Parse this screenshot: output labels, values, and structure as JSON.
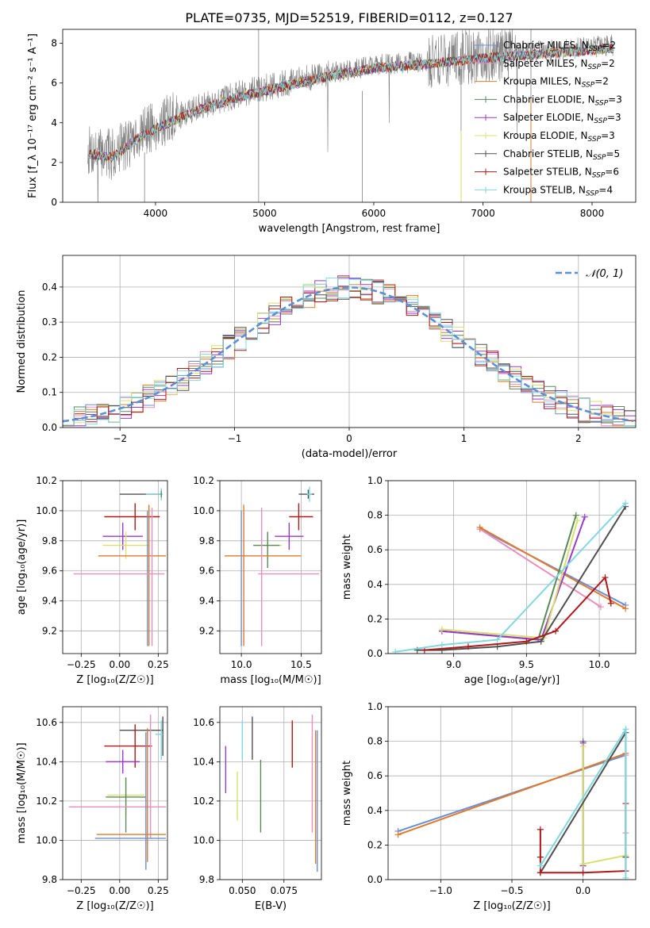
{
  "figure": {
    "title": "PLATE=0735, MJD=52519, FIBERID=0112, z=0.127"
  },
  "colors": {
    "Chabrier MILES": "#6a8fd8",
    "Salpeter MILES": "#e88fc0",
    "Kroupa MILES": "#e07a2a",
    "Chabrier ELODIE": "#5a8a5a",
    "Salpeter ELODIE": "#9a3acc",
    "Kroupa ELODIE": "#d8e070",
    "Chabrier STELIB": "#505050",
    "Salpeter STELIB": "#b01818",
    "Kroupa STELIB": "#80d8e0",
    "data": "#808080",
    "gaussian": "#5b8fd6",
    "grid": "#b0b0b0"
  },
  "chart_data": [
    {
      "type": "line",
      "panel": "spectrum",
      "xlabel": "wavelength [Angstrom, rest frame]",
      "ylabel": "Flux [f_λ 10⁻¹⁷ erg cm⁻² s⁻¹ A⁻¹]",
      "xlim": [
        3150,
        8400
      ],
      "ylim": [
        0,
        8.7
      ],
      "xticks": [
        "4000",
        "5000",
        "6000",
        "7000",
        "8000"
      ],
      "yticks": [
        "0",
        "2",
        "4",
        "6",
        "8"
      ],
      "legend": [
        {
          "label": "Chabrier MILES, N",
          "sub": "SSP",
          "tail": "=2",
          "color": "Chabrier MILES"
        },
        {
          "label": "Salpeter MILES, N",
          "sub": "SSP",
          "tail": "=2",
          "color": "Salpeter MILES"
        },
        {
          "label": "Kroupa MILES, N",
          "sub": "SSP",
          "tail": "=2",
          "color": "Kroupa MILES"
        },
        {
          "label": "Chabrier ELODIE, N",
          "sub": "SSP",
          "tail": "=3",
          "color": "Chabrier ELODIE"
        },
        {
          "label": "Salpeter ELODIE, N",
          "sub": "SSP",
          "tail": "=3",
          "color": "Salpeter ELODIE"
        },
        {
          "label": "Kroupa ELODIE, N",
          "sub": "SSP",
          "tail": "=3",
          "color": "Kroupa ELODIE"
        },
        {
          "label": "Chabrier STELIB, N",
          "sub": "SSP",
          "tail": "=5",
          "color": "Chabrier STELIB"
        },
        {
          "label": "Salpeter STELIB, N",
          "sub": "SSP",
          "tail": "=6",
          "color": "Salpeter STELIB"
        },
        {
          "label": "Kroupa STELIB, N",
          "sub": "SSP",
          "tail": "=4",
          "color": "Kroupa STELIB"
        }
      ],
      "legend_position": "upper-right",
      "continuum_knots": [
        [
          3380,
          2.6
        ],
        [
          3600,
          2.4
        ],
        [
          3900,
          3.6
        ],
        [
          4100,
          4.1
        ],
        [
          4400,
          4.8
        ],
        [
          4800,
          5.5
        ],
        [
          5200,
          6.0
        ],
        [
          5600,
          6.5
        ],
        [
          6000,
          6.9
        ],
        [
          6500,
          7.1
        ],
        [
          7000,
          7.4
        ],
        [
          7500,
          7.6
        ],
        [
          8000,
          7.8
        ],
        [
          8200,
          7.9
        ]
      ],
      "data_range": [
        3380,
        8200
      ],
      "grid": false
    },
    {
      "type": "line",
      "panel": "residuals",
      "xlabel": "(data-model)/error",
      "ylabel": "Normed distribution",
      "xlim": [
        -2.5,
        2.5
      ],
      "ylim": [
        0,
        0.49
      ],
      "xticks": [
        "−2",
        "−1",
        "0",
        "1",
        "2"
      ],
      "yticks": [
        "0.0",
        "0.1",
        "0.2",
        "0.3",
        "0.4"
      ],
      "bin_width": 0.1,
      "legend": [
        {
          "label": "𝒩(0, 1)",
          "style": "dashed"
        }
      ],
      "legend_position": "upper-right",
      "grid": true
    },
    {
      "type": "scatter",
      "panel": "age-vs-Z",
      "xlabel": "Z [log₁₀(Z/Z☉)]",
      "ylabel": "age  [log₁₀(age/yr)]",
      "xlim": [
        -0.37,
        0.31
      ],
      "ylim": [
        9.05,
        10.2
      ],
      "xticks": [
        "−0.25",
        "0.00",
        "0.25"
      ],
      "yticks": [
        "9.2",
        "9.4",
        "9.6",
        "9.8",
        "10.0",
        "10.2"
      ],
      "grid": true,
      "errorbars": [
        {
          "model": "Chabrier STELIB",
          "x": 0.27,
          "y": 10.11,
          "xerr": [
            0.27,
            0.0
          ],
          "yerr": [
            0.03,
            0.03
          ]
        },
        {
          "model": "Kroupa STELIB",
          "x": 0.27,
          "y": 10.11,
          "xerr": [
            0.1,
            0.01
          ],
          "yerr": [
            0.04,
            0.04
          ]
        },
        {
          "model": "Chabrier ELODIE",
          "x": 0.27,
          "y": 10.11,
          "xerr": [
            0.0,
            0.0
          ],
          "yerr": [
            0.02,
            0.02
          ]
        },
        {
          "model": "Salpeter STELIB",
          "x": 0.1,
          "y": 9.96,
          "xerr": [
            0.2,
            0.16
          ],
          "yerr": [
            0.09,
            0.09
          ]
        },
        {
          "model": "Salpeter ELODIE",
          "x": 0.02,
          "y": 9.83,
          "xerr": [
            0.13,
            0.13
          ],
          "yerr": [
            0.09,
            0.09
          ]
        },
        {
          "model": "Kroupa ELODIE",
          "x": 0.04,
          "y": 9.77,
          "xerr": [
            0.15,
            0.15
          ],
          "yerr": [
            0.09,
            0.09
          ]
        },
        {
          "model": "Kroupa MILES",
          "x": 0.19,
          "y": 9.7,
          "xerr": [
            0.33,
            0.11
          ],
          "yerr": [
            0.6,
            0.34
          ]
        },
        {
          "model": "Chabrier MILES",
          "x": 0.18,
          "y": 9.7,
          "xerr": [
            0.0,
            0.0
          ],
          "yerr": [
            0.6,
            0.3
          ]
        },
        {
          "model": "Salpeter MILES",
          "x": 0.21,
          "y": 9.58,
          "xerr": [
            0.51,
            0.08
          ],
          "yerr": [
            0.48,
            0.44
          ]
        }
      ]
    },
    {
      "type": "scatter",
      "panel": "age-vs-mass",
      "xlabel": "mass [log₁₀(M/M☉)]",
      "ylabel": "",
      "xlim": [
        9.82,
        10.67
      ],
      "ylim": [
        9.05,
        10.2
      ],
      "xticks": [
        "10.0",
        "10.5"
      ],
      "yticks": [
        "9.2",
        "9.4",
        "9.6",
        "9.8",
        "10.0",
        "10.2"
      ],
      "grid": true,
      "errorbars": [
        {
          "model": "Chabrier STELIB",
          "x": 10.56,
          "y": 10.11,
          "xerr": [
            0.08,
            0.05
          ],
          "yerr": [
            0.03,
            0.03
          ]
        },
        {
          "model": "Kroupa STELIB",
          "x": 10.57,
          "y": 10.11,
          "xerr": [
            0.02,
            0.02
          ],
          "yerr": [
            0.05,
            0.05
          ]
        },
        {
          "model": "Salpeter STELIB",
          "x": 10.48,
          "y": 9.96,
          "xerr": [
            0.08,
            0.12
          ],
          "yerr": [
            0.09,
            0.09
          ]
        },
        {
          "model": "Salpeter ELODIE",
          "x": 10.4,
          "y": 9.83,
          "xerr": [
            0.12,
            0.12
          ],
          "yerr": [
            0.09,
            0.09
          ]
        },
        {
          "model": "Kroupa ELODIE",
          "x": 10.22,
          "y": 9.77,
          "xerr": [
            0.12,
            0.12
          ],
          "yerr": [
            0.09,
            0.09
          ]
        },
        {
          "model": "Chabrier ELODIE",
          "x": 10.22,
          "y": 9.77,
          "xerr": [
            0.12,
            0.1
          ],
          "yerr": [
            0.15,
            0.09
          ]
        },
        {
          "model": "Kroupa MILES",
          "x": 10.02,
          "y": 9.7,
          "xerr": [
            0.16,
            0.48
          ],
          "yerr": [
            0.6,
            0.34
          ]
        },
        {
          "model": "Chabrier MILES",
          "x": 10.0,
          "y": 9.7,
          "xerr": [
            0.0,
            0.0
          ],
          "yerr": [
            0.6,
            0.3
          ]
        },
        {
          "model": "Salpeter MILES",
          "x": 10.17,
          "y": 9.58,
          "xerr": [
            0.03,
            0.48
          ],
          "yerr": [
            0.48,
            0.44
          ]
        }
      ]
    },
    {
      "type": "line",
      "panel": "weight-vs-age",
      "xlabel": "age  [log₁₀(age/yr)]",
      "ylabel": "mass weight",
      "xlim": [
        8.55,
        10.25
      ],
      "ylim": [
        0,
        1.0
      ],
      "xticks": [
        "9.0",
        "9.5",
        "10.0"
      ],
      "yticks": [
        "0.0",
        "0.2",
        "0.4",
        "0.6",
        "0.8",
        "1.0"
      ],
      "grid": true,
      "series": [
        {
          "model": "Chabrier MILES",
          "x": [
            9.18,
            10.18
          ],
          "y": [
            0.72,
            0.28
          ]
        },
        {
          "model": "Salpeter MILES",
          "x": [
            9.18,
            10.01
          ],
          "y": [
            0.72,
            0.27
          ]
        },
        {
          "model": "Kroupa MILES",
          "x": [
            9.18,
            10.18
          ],
          "y": [
            0.73,
            0.26
          ]
        },
        {
          "model": "Chabrier ELODIE",
          "x": [
            8.92,
            9.58,
            9.84
          ],
          "y": [
            0.13,
            0.08,
            0.8
          ]
        },
        {
          "model": "Salpeter ELODIE",
          "x": [
            8.92,
            9.6,
            9.9
          ],
          "y": [
            0.13,
            0.08,
            0.79
          ]
        },
        {
          "model": "Kroupa ELODIE",
          "x": [
            8.92,
            9.62,
            9.85
          ],
          "y": [
            0.14,
            0.09,
            0.77
          ]
        },
        {
          "model": "Chabrier STELIB",
          "x": [
            8.75,
            8.92,
            9.3,
            9.6,
            10.18
          ],
          "y": [
            0.02,
            0.02,
            0.04,
            0.07,
            0.85
          ]
        },
        {
          "model": "Salpeter STELIB",
          "x": [
            8.8,
            9.1,
            9.5,
            9.7,
            10.04,
            10.08
          ],
          "y": [
            0.02,
            0.04,
            0.07,
            0.13,
            0.44,
            0.29
          ]
        },
        {
          "model": "Kroupa STELIB",
          "x": [
            8.6,
            8.92,
            9.3,
            10.18
          ],
          "y": [
            0.01,
            0.05,
            0.08,
            0.87
          ]
        }
      ]
    },
    {
      "type": "scatter",
      "panel": "mass-vs-Z",
      "xlabel": "Z [log₁₀(Z/Z☉)]",
      "ylabel": "mass [log₁₀(M/M☉)]",
      "xlim": [
        -0.37,
        0.31
      ],
      "ylim": [
        9.8,
        10.68
      ],
      "xticks": [
        "−0.25",
        "0.00",
        "0.25"
      ],
      "yticks": [
        "9.8",
        "10.0",
        "10.2",
        "10.4",
        "10.6"
      ],
      "grid": true,
      "errorbars": [
        {
          "model": "Chabrier STELIB",
          "x": 0.28,
          "y": 10.56,
          "xerr": [
            0.28,
            0.0
          ],
          "yerr": [
            0.13,
            0.07
          ]
        },
        {
          "model": "Kroupa STELIB",
          "x": 0.27,
          "y": 10.54,
          "xerr": [
            0.04,
            0.01
          ],
          "yerr": [
            0.13,
            0.07
          ]
        },
        {
          "model": "Salpeter STELIB",
          "x": 0.1,
          "y": 10.48,
          "xerr": [
            0.2,
            0.11
          ],
          "yerr": [
            0.11,
            0.11
          ]
        },
        {
          "model": "Salpeter ELODIE",
          "x": 0.02,
          "y": 10.4,
          "xerr": [
            0.11,
            0.11
          ],
          "yerr": [
            0.06,
            0.06
          ]
        },
        {
          "model": "Kroupa ELODIE",
          "x": 0.04,
          "y": 10.23,
          "xerr": [
            0.12,
            0.12
          ],
          "yerr": [
            0.1,
            0.09
          ]
        },
        {
          "model": "Chabrier ELODIE",
          "x": 0.04,
          "y": 10.22,
          "xerr": [
            0.13,
            0.13
          ],
          "yerr": [
            0.18,
            0.1
          ]
        },
        {
          "model": "Salpeter MILES",
          "x": 0.2,
          "y": 10.17,
          "xerr": [
            0.53,
            0.1
          ],
          "yerr": [
            0.16,
            0.47
          ]
        },
        {
          "model": "Kroupa MILES",
          "x": 0.18,
          "y": 10.03,
          "xerr": [
            0.33,
            0.12
          ],
          "yerr": [
            0.14,
            0.54
          ]
        },
        {
          "model": "Chabrier MILES",
          "x": 0.17,
          "y": 10.01,
          "xerr": [
            0.33,
            0.13
          ],
          "yerr": [
            0.16,
            0.54
          ]
        }
      ]
    },
    {
      "type": "scatter",
      "panel": "mass-vs-EBV",
      "xlabel": "E(B-V)",
      "ylabel": "",
      "xlim": [
        0.0365,
        0.0975
      ],
      "ylim": [
        9.8,
        10.68
      ],
      "xticks": [
        "0.050",
        "0.075"
      ],
      "yticks": [
        "9.8",
        "10.0",
        "10.2",
        "10.4",
        "10.6"
      ],
      "grid": true,
      "errorbars": [
        {
          "model": "Salpeter ELODIE",
          "x": 0.04,
          "y": 10.36,
          "yerr": [
            0.12,
            0.12
          ]
        },
        {
          "model": "Kroupa ELODIE",
          "x": 0.047,
          "y": 10.23,
          "yerr": [
            0.13,
            0.12
          ]
        },
        {
          "model": "Kroupa STELIB",
          "x": 0.05,
          "y": 10.54,
          "yerr": [
            0.13,
            0.07
          ]
        },
        {
          "model": "Chabrier STELIB",
          "x": 0.056,
          "y": 10.52,
          "yerr": [
            0.11,
            0.11
          ]
        },
        {
          "model": "Chabrier ELODIE",
          "x": 0.061,
          "y": 10.22,
          "yerr": [
            0.18,
            0.19
          ]
        },
        {
          "model": "Salpeter STELIB",
          "x": 0.08,
          "y": 10.49,
          "yerr": [
            0.12,
            0.12
          ]
        },
        {
          "model": "Salpeter MILES",
          "x": 0.092,
          "y": 10.34,
          "yerr": [
            0.3,
            0.3
          ]
        },
        {
          "model": "Kroupa MILES",
          "x": 0.094,
          "y": 10.22,
          "yerr": [
            0.34,
            0.34
          ]
        },
        {
          "model": "Chabrier MILES",
          "x": 0.095,
          "y": 10.2,
          "yerr": [
            0.36,
            0.36
          ]
        }
      ]
    },
    {
      "type": "line",
      "panel": "weight-vs-Z",
      "xlabel": "Z [log₁₀(Z/Z☉)]",
      "ylabel": "mass weight",
      "xlim": [
        -1.37,
        0.37
      ],
      "ylim": [
        0,
        1.0
      ],
      "xticks": [
        "−1.0",
        "−0.5",
        "0.0"
      ],
      "yticks": [
        "0.0",
        "0.2",
        "0.4",
        "0.6",
        "0.8",
        "1.0"
      ],
      "grid": true,
      "series": [
        {
          "model": "Chabrier MILES",
          "x": [
            -1.3,
            0.3
          ],
          "y": [
            0.28,
            0.72
          ]
        },
        {
          "model": "Salpeter MILES",
          "x": [
            0.3,
            0.3
          ],
          "y": [
            0.27,
            0.72
          ]
        },
        {
          "model": "Kroupa MILES",
          "x": [
            -1.3,
            0.3
          ],
          "y": [
            0.26,
            0.73
          ]
        },
        {
          "model": "Chabrier ELODIE",
          "x": [
            0.0,
            0.0
          ],
          "y": [
            0.08,
            0.8
          ]
        },
        {
          "model": "Salpeter ELODIE",
          "x": [
            0.0,
            0.0
          ],
          "y": [
            0.79,
            0.08
          ]
        },
        {
          "model": "Kroupa ELODIE",
          "x": [
            0.0,
            0.0,
            0.3
          ],
          "y": [
            0.77,
            0.09,
            0.14
          ]
        },
        {
          "model": "Chabrier STELIB",
          "x": [
            -0.3,
            0.3,
            0.3
          ],
          "y": [
            0.04,
            0.85,
            0.13
          ]
        },
        {
          "model": "Salpeter STELIB",
          "x": [
            -0.3,
            -0.3,
            -0.3,
            0.0,
            0.3,
            0.3
          ],
          "y": [
            0.29,
            0.13,
            0.04,
            0.04,
            0.05,
            0.44
          ]
        },
        {
          "model": "Kroupa STELIB",
          "x": [
            -0.3,
            0.3,
            0.3
          ],
          "y": [
            0.08,
            0.87,
            0.01
          ]
        }
      ]
    }
  ]
}
